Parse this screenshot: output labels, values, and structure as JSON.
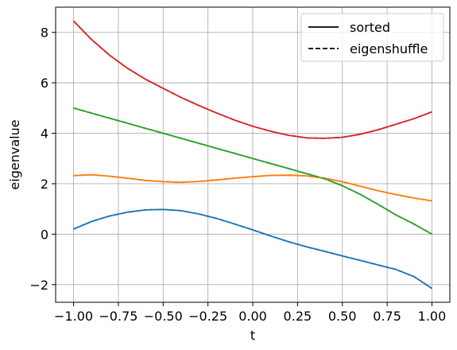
{
  "chart_data": {
    "type": "line",
    "xlabel": "t",
    "ylabel": "eigenvalue",
    "xlim": [
      -1.1,
      1.1
    ],
    "ylim": [
      -2.7,
      9.0
    ],
    "grid": true,
    "legend_placement": "top-right",
    "x_ticks": [
      -1.0,
      -0.75,
      -0.5,
      -0.25,
      0.0,
      0.25,
      0.5,
      0.75,
      1.0
    ],
    "x_tick_labels": [
      "−1.00",
      "−0.75",
      "−0.50",
      "−0.25",
      "0.00",
      "0.25",
      "0.50",
      "0.75",
      "1.00"
    ],
    "y_ticks": [
      -2,
      0,
      2,
      4,
      6,
      8
    ],
    "y_tick_labels": [
      "−2",
      "0",
      "2",
      "4",
      "6",
      "8"
    ],
    "legend": [
      {
        "label": "sorted",
        "style": "solid"
      },
      {
        "label": "eigenshuffle",
        "style": "dashed"
      }
    ],
    "x": [
      -1.0,
      -0.9,
      -0.8,
      -0.7,
      -0.6,
      -0.5,
      -0.4,
      -0.3,
      -0.2,
      -0.1,
      0.0,
      0.1,
      0.2,
      0.3,
      0.4,
      0.5,
      0.6,
      0.7,
      0.8,
      0.9,
      1.0
    ],
    "series": [
      {
        "color": "#1f77b4",
        "style": "solid",
        "values": [
          0.2,
          0.5,
          0.72,
          0.87,
          0.96,
          0.98,
          0.93,
          0.8,
          0.62,
          0.4,
          0.17,
          -0.07,
          -0.3,
          -0.5,
          -0.68,
          -0.86,
          -1.04,
          -1.22,
          -1.4,
          -1.68,
          -2.15
        ]
      },
      {
        "color": "#ff7f0e",
        "style": "solid",
        "values": [
          2.32,
          2.36,
          2.3,
          2.22,
          2.13,
          2.08,
          2.06,
          2.09,
          2.15,
          2.22,
          2.28,
          2.33,
          2.34,
          2.31,
          2.22,
          2.08,
          1.9,
          1.72,
          1.57,
          1.43,
          1.32
        ]
      },
      {
        "color": "#2ca02c",
        "style": "solid",
        "values": [
          5.0,
          4.8,
          4.6,
          4.4,
          4.2,
          4.0,
          3.8,
          3.6,
          3.4,
          3.2,
          3.0,
          2.8,
          2.6,
          2.4,
          2.2,
          1.92,
          1.58,
          1.18,
          0.76,
          0.4,
          0.0
        ]
      },
      {
        "color": "#d62728",
        "style": "solid",
        "values": [
          8.45,
          7.72,
          7.1,
          6.58,
          6.15,
          5.78,
          5.42,
          5.1,
          4.8,
          4.52,
          4.28,
          4.08,
          3.92,
          3.82,
          3.8,
          3.84,
          3.96,
          4.14,
          4.36,
          4.58,
          4.85
        ]
      },
      {
        "color": "#1f77b4",
        "style": "dashed",
        "values": [
          0.2,
          0.5,
          0.72,
          0.87,
          0.96,
          0.98,
          0.93,
          0.8,
          0.62,
          0.4,
          0.17,
          -0.07,
          -0.3,
          -0.5,
          -0.68,
          -0.86,
          -1.04,
          -1.22,
          -1.4,
          -1.68,
          -2.15
        ]
      },
      {
        "color": "#ff7f0e",
        "style": "dashed",
        "values": [
          2.32,
          2.36,
          2.3,
          2.22,
          2.13,
          2.08,
          2.06,
          2.09,
          2.15,
          2.22,
          2.28,
          2.33,
          2.34,
          2.31,
          2.22,
          2.08,
          1.9,
          1.72,
          1.57,
          1.43,
          1.32
        ]
      },
      {
        "color": "#2ca02c",
        "style": "dashed",
        "values": [
          5.0,
          4.8,
          4.6,
          4.4,
          4.2,
          4.0,
          3.8,
          3.6,
          3.4,
          3.2,
          3.0,
          2.8,
          2.6,
          2.4,
          2.2,
          1.92,
          1.58,
          1.18,
          0.76,
          0.4,
          0.0
        ]
      },
      {
        "color": "#d62728",
        "style": "dashed",
        "values": [
          8.45,
          7.72,
          7.1,
          6.58,
          6.15,
          5.78,
          5.42,
          5.1,
          4.8,
          4.52,
          4.28,
          4.08,
          3.92,
          3.82,
          3.8,
          3.84,
          3.96,
          4.14,
          4.36,
          4.58,
          4.85
        ]
      }
    ]
  }
}
